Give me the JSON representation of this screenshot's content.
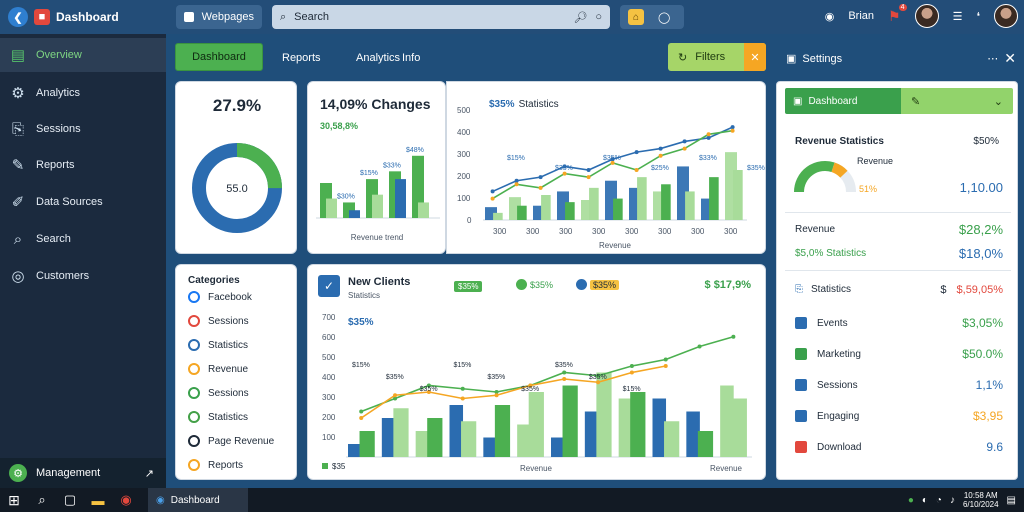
{
  "app": {
    "title": "Dashboard",
    "tab_label": "Webpages",
    "search_text": "Search",
    "notif_count": "4",
    "user_label": "Brian"
  },
  "sidebar": {
    "items": [
      {
        "label": "Overview",
        "icon": "dashboard-icon",
        "active": true
      },
      {
        "label": "Analytics",
        "icon": "analytics-icon",
        "active": false
      },
      {
        "label": "Sessions",
        "icon": "sessions-icon",
        "active": false
      },
      {
        "label": "Reports",
        "icon": "reports-icon",
        "active": false
      },
      {
        "label": "Data Sources",
        "icon": "data-icon",
        "active": false
      },
      {
        "label": "Search",
        "icon": "search-icon",
        "active": false
      },
      {
        "label": "Customers",
        "icon": "customers-icon",
        "active": false
      }
    ],
    "footer_label": "Management"
  },
  "header": {
    "primary_button": "Dashboard",
    "links": [
      "Reports",
      "Analytics",
      "Info"
    ],
    "filter_button": "Filters",
    "panel_title": "Settings"
  },
  "kpi": {
    "value": "27.9%",
    "donut_center": "55.0",
    "donut_fraction": 0.75
  },
  "bar_chart": {
    "title": "14,09% Changes",
    "subtitle": "30,58,8%",
    "chart_data": {
      "type": "bar",
      "categories": [
        "",
        "",
        "",
        "",
        ""
      ],
      "series": [
        {
          "values": [
            45,
            20,
            50,
            60,
            80
          ]
        },
        {
          "values": [
            25,
            10,
            30,
            50,
            20
          ]
        }
      ],
      "data_labels": [
        "$30%",
        "$15%",
        "$33%",
        "$48%"
      ],
      "xlabel": "Revenue trend"
    }
  },
  "line_chart_top": {
    "title": "Statistics",
    "badge": "$35%",
    "chart_data": {
      "type": "bar",
      "ylim": [
        0,
        500
      ],
      "yticks": [
        "100",
        "200",
        "300",
        "400",
        "500"
      ],
      "xticks": [
        "300",
        "300",
        "300",
        "300",
        "300",
        "300",
        "300",
        "300"
      ],
      "bars": [
        {
          "values": [
            18,
            32,
            20,
            40,
            28,
            55,
            45,
            40,
            75,
            30,
            95
          ]
        },
        {
          "values": [
            10,
            20,
            35,
            25,
            45,
            30,
            60,
            50,
            40,
            60,
            70
          ]
        }
      ],
      "lines": [
        {
          "values": [
            40,
            55,
            60,
            75,
            70,
            85,
            95,
            100,
            110,
            115,
            130
          ]
        },
        {
          "values": [
            30,
            50,
            45,
            65,
            60,
            80,
            70,
            90,
            100,
            120,
            125
          ]
        }
      ],
      "data_labels": [
        "$15%",
        "$33%",
        "$35%",
        "$25%",
        "$33%",
        "$35%"
      ],
      "xlabel": "Revenue"
    }
  },
  "list_panel": {
    "title": "Categories",
    "items": [
      {
        "label": "Facebook",
        "color": "#1877f2"
      },
      {
        "label": "Sessions",
        "color": "#e2483d"
      },
      {
        "label": "Statistics",
        "color": "#2b6cb0"
      },
      {
        "label": "Revenue",
        "color": "#f5a623"
      },
      {
        "label": "Sessions",
        "color": "#3aa04c"
      },
      {
        "label": "Statistics",
        "color": "#43a047"
      },
      {
        "label": "Page Revenue",
        "color": "#1e2a38"
      },
      {
        "label": "Reports",
        "color": "#f5a623"
      }
    ]
  },
  "main_chart": {
    "title": "New Clients",
    "subtitle": "Statistics",
    "badge_green": "$35%",
    "pill_1": "$35%",
    "pill_2": "$35%",
    "stat": "$ $17,9%",
    "left_value": "$35%",
    "chart_data": {
      "type": "bar",
      "ylim": [
        0,
        700
      ],
      "yticks": [
        "100",
        "200",
        "300",
        "400",
        "500",
        "600",
        "700"
      ],
      "bars": [
        {
          "values": [
            20,
            60,
            40,
            80,
            30,
            50,
            30,
            70,
            90,
            90,
            70,
            110
          ]
        },
        {
          "values": [
            40,
            75,
            60,
            55,
            80,
            100,
            110,
            130,
            100,
            55,
            40,
            90
          ]
        }
      ],
      "lines": [
        {
          "values": [
            70,
            90,
            110,
            105,
            100,
            110,
            130,
            125,
            140,
            150,
            170,
            185
          ]
        },
        {
          "values": [
            60,
            95,
            100,
            90,
            95,
            110,
            120,
            115,
            130,
            140
          ]
        }
      ],
      "data_labels": [
        "$15%",
        "$35%",
        "$35%",
        "$15%",
        "$35%",
        "$35%",
        "$35%",
        "$35%",
        "$15%"
      ],
      "legend_label": "$35",
      "xlabel": "Revenue",
      "xlabel2": "Revenue"
    }
  },
  "right_panel": {
    "top_button": "Dashboard",
    "gauge_title": "Revenue Statistics",
    "gauge_label": "Revenue",
    "gauge_value": "51%",
    "gauge_fraction": 0.6,
    "gauge_amount": "$50%",
    "gauge_total": "1,10.00",
    "rows": [
      {
        "label": "Revenue",
        "value": "$28,2%",
        "value_color": "#3aa04c"
      },
      {
        "label": "$5,0% Statistics",
        "value": "$18,0%",
        "value_color": "#2b6cb0",
        "label_color": "#3aa04c"
      }
    ],
    "stats_header": {
      "label": "Statistics",
      "prefix": "$",
      "value": "$,59,05%"
    },
    "stats": [
      {
        "label": "Events",
        "value": "$3,05%",
        "value_color": "#3aa04c",
        "swatch": "#2b6cb0"
      },
      {
        "label": "Marketing",
        "value": "$50.0%",
        "value_color": "#3aa04c",
        "swatch": "#3aa04c"
      },
      {
        "label": "Sessions",
        "value": "1,1%",
        "value_color": "#2b6cb0",
        "swatch": "#2b6cb0"
      },
      {
        "label": "Engaging",
        "value": "$3,95",
        "value_color": "#f5a623",
        "swatch": "#2b6cb0"
      },
      {
        "label": "Download",
        "value": "9.6",
        "value_color": "#2b6cb0",
        "swatch": "#e2483d"
      }
    ]
  },
  "taskbar": {
    "search_label": "Search",
    "active_app": "Dashboard",
    "time": "10:58 AM",
    "date": "6/10/2024"
  },
  "colors": {
    "green": "#4cb050",
    "blue": "#2b6cb0",
    "light_green": "#a8dc9a",
    "dark_navy": "#1b2a3e",
    "orange": "#f5a623"
  }
}
